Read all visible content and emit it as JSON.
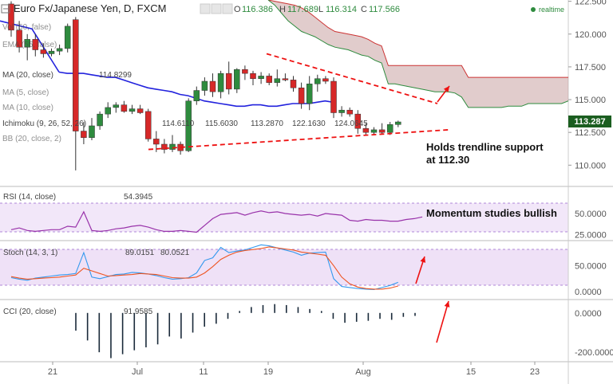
{
  "header": {
    "title": "Euro Fx/Japanese Yen, D, FXCM",
    "o_label": "O",
    "o_value": "116.386",
    "h_label": "H",
    "h_value": "117.689",
    "l_label": "L",
    "l_value": "116.314",
    "c_label": "C",
    "c_value": "117.566",
    "realtime": "realtime"
  },
  "indicators": {
    "vol": "Vol (50, false)",
    "ema": "EMA (55, false)",
    "ma20": "MA (20, close)",
    "ma20_value": "114.8299",
    "ma5": "MA (5, close)",
    "ma10": "MA (10, close)",
    "ichimoku": "Ichimoku (9, 26, 52, 26)",
    "ichimoku_values": [
      "114.6110",
      "115.6030",
      "113.2870",
      "122.1630",
      "124.0645"
    ],
    "bb": "BB (20, close, 2)"
  },
  "colors": {
    "bull": "#2e8b3e",
    "bear": "#d62828",
    "ma": "#2222dd",
    "cloud": "#c9a3a3",
    "rsi": "#9933aa",
    "stoch_k": "#3399ee",
    "stoch_d": "#ee5522",
    "band": "#e8d4f4",
    "trend": "#ee1111",
    "price_tag": "#1b5e20"
  },
  "annotations": {
    "trendline_note_line1": "Holds trendline support",
    "trendline_note_line2": "at 112.30",
    "momentum_note": "Momentum studies bullish"
  },
  "price_tag": "113.287",
  "chart_data": [
    {
      "type": "candlestick",
      "panel": "price",
      "y_ticks": [
        "122.500",
        "120.000",
        "117.500",
        "115.000",
        "112.500",
        "110.000"
      ],
      "ylim": [
        108.5,
        122.6
      ],
      "x_ticks": [
        "21",
        "Jul",
        "11",
        "19",
        "Aug",
        "15",
        "23"
      ],
      "candles": [
        {
          "o": 122.3,
          "h": 122.5,
          "l": 119.8,
          "c": 120.3
        },
        {
          "o": 120.3,
          "h": 121.0,
          "l": 118.6,
          "c": 119.0
        },
        {
          "o": 119.0,
          "h": 120.0,
          "l": 118.0,
          "c": 119.6
        },
        {
          "o": 119.6,
          "h": 120.0,
          "l": 118.3,
          "c": 118.8
        },
        {
          "o": 118.8,
          "h": 119.3,
          "l": 118.2,
          "c": 118.5
        },
        {
          "o": 118.5,
          "h": 118.9,
          "l": 118.3,
          "c": 118.7
        },
        {
          "o": 118.7,
          "h": 119.2,
          "l": 118.4,
          "c": 118.9
        },
        {
          "o": 118.9,
          "h": 120.8,
          "l": 118.6,
          "c": 120.6
        },
        {
          "o": 121.1,
          "h": 121.3,
          "l": 109.6,
          "c": 112.6
        },
        {
          "o": 112.6,
          "h": 113.3,
          "l": 111.6,
          "c": 112.1
        },
        {
          "o": 112.1,
          "h": 113.6,
          "l": 111.9,
          "c": 113.0
        },
        {
          "o": 113.0,
          "h": 114.1,
          "l": 112.7,
          "c": 113.9
        },
        {
          "o": 113.9,
          "h": 114.8,
          "l": 113.6,
          "c": 114.4
        },
        {
          "o": 114.4,
          "h": 114.8,
          "l": 114.0,
          "c": 114.6
        },
        {
          "o": 114.6,
          "h": 114.9,
          "l": 114.0,
          "c": 114.1
        },
        {
          "o": 114.1,
          "h": 114.6,
          "l": 113.9,
          "c": 114.3
        },
        {
          "o": 114.3,
          "h": 114.6,
          "l": 113.9,
          "c": 114.0
        },
        {
          "o": 114.1,
          "h": 114.3,
          "l": 111.8,
          "c": 112.0
        },
        {
          "o": 112.0,
          "h": 112.6,
          "l": 111.0,
          "c": 111.6
        },
        {
          "o": 111.6,
          "h": 112.0,
          "l": 110.9,
          "c": 111.2
        },
        {
          "o": 111.2,
          "h": 112.3,
          "l": 111.0,
          "c": 111.6
        },
        {
          "o": 111.6,
          "h": 111.8,
          "l": 110.8,
          "c": 111.1
        },
        {
          "o": 111.1,
          "h": 115.1,
          "l": 111.0,
          "c": 114.9
        },
        {
          "o": 114.9,
          "h": 116.0,
          "l": 114.6,
          "c": 115.7
        },
        {
          "o": 115.7,
          "h": 116.7,
          "l": 115.3,
          "c": 116.4
        },
        {
          "o": 116.4,
          "h": 117.0,
          "l": 115.2,
          "c": 115.6
        },
        {
          "o": 115.6,
          "h": 117.2,
          "l": 115.1,
          "c": 117.0
        },
        {
          "o": 117.0,
          "h": 117.9,
          "l": 115.4,
          "c": 115.8
        },
        {
          "o": 115.8,
          "h": 117.4,
          "l": 115.5,
          "c": 117.3
        },
        {
          "o": 117.3,
          "h": 117.6,
          "l": 116.5,
          "c": 117.0
        },
        {
          "o": 117.0,
          "h": 117.2,
          "l": 116.1,
          "c": 116.6
        },
        {
          "o": 116.6,
          "h": 117.1,
          "l": 116.2,
          "c": 116.8
        },
        {
          "o": 116.8,
          "h": 117.0,
          "l": 116.1,
          "c": 116.3
        },
        {
          "o": 116.3,
          "h": 117.3,
          "l": 116.0,
          "c": 116.6
        },
        {
          "o": 116.6,
          "h": 117.0,
          "l": 116.4,
          "c": 116.5
        },
        {
          "o": 116.5,
          "h": 116.8,
          "l": 115.6,
          "c": 115.9
        },
        {
          "o": 115.9,
          "h": 116.3,
          "l": 114.3,
          "c": 114.7
        },
        {
          "o": 114.7,
          "h": 116.8,
          "l": 114.2,
          "c": 116.2
        },
        {
          "o": 116.2,
          "h": 116.9,
          "l": 115.6,
          "c": 116.6
        },
        {
          "o": 116.6,
          "h": 116.8,
          "l": 116.2,
          "c": 116.4
        },
        {
          "o": 116.4,
          "h": 116.7,
          "l": 113.6,
          "c": 114.0
        },
        {
          "o": 114.0,
          "h": 114.5,
          "l": 113.7,
          "c": 114.2
        },
        {
          "o": 114.2,
          "h": 114.4,
          "l": 113.7,
          "c": 113.9
        },
        {
          "o": 113.9,
          "h": 114.2,
          "l": 112.4,
          "c": 112.8
        },
        {
          "o": 112.8,
          "h": 113.2,
          "l": 112.3,
          "c": 112.5
        },
        {
          "o": 112.5,
          "h": 112.9,
          "l": 112.3,
          "c": 112.7
        },
        {
          "o": 112.7,
          "h": 113.2,
          "l": 112.4,
          "c": 112.5
        },
        {
          "o": 112.5,
          "h": 113.3,
          "l": 112.3,
          "c": 113.1
        },
        {
          "o": 113.1,
          "h": 113.4,
          "l": 112.9,
          "c": 113.3
        }
      ],
      "ma20": [
        117.1,
        117.0,
        117.0,
        117.0,
        116.9,
        116.8,
        116.7,
        116.7,
        116.5,
        116.3,
        116.1,
        115.9,
        115.8,
        115.7,
        115.6,
        115.4,
        115.3,
        115.1,
        114.9,
        114.8,
        114.7,
        114.6,
        114.5,
        114.5,
        114.6,
        114.6,
        114.5,
        114.5,
        114.6,
        114.7,
        114.7,
        114.7,
        114.8,
        114.9,
        114.8
      ],
      "cloud_upper": [
        122.6,
        122.5,
        122.4,
        122.3,
        122.2,
        122.0,
        121.7,
        121.3,
        120.9,
        120.5,
        120.2,
        120.1,
        120.0,
        119.9,
        119.8,
        119.6,
        119.3,
        119.1,
        117.6,
        117.6,
        117.6,
        117.6,
        117.6,
        117.6,
        117.6,
        117.6,
        117.6,
        117.6,
        117.6,
        117.6,
        116.7,
        116.7,
        116.7,
        116.7,
        116.7,
        116.7,
        116.7,
        116.7,
        116.7,
        116.7,
        116.7,
        116.7,
        116.7,
        116.7,
        116.7,
        116.7
      ],
      "cloud_lower": [
        122.6,
        122.2,
        121.6,
        121.0,
        120.6,
        120.2,
        120.0,
        119.8,
        119.5,
        119.2,
        119.0,
        118.9,
        118.8,
        118.6,
        118.4,
        118.3,
        118.0,
        117.8,
        116.2,
        116.2,
        116.1,
        116.0,
        115.9,
        115.8,
        115.7,
        115.6,
        115.6,
        115.6,
        115.5,
        115.2,
        114.4,
        114.4,
        114.4,
        114.4,
        114.4,
        114.4,
        114.5,
        114.5,
        114.5,
        114.7,
        114.7,
        114.7,
        114.7,
        114.7,
        114.7,
        114.9
      ]
    },
    {
      "type": "line",
      "panel": "rsi",
      "label": "RSI (14, close)",
      "value_label": "54.3945",
      "y_ticks": [
        "50.0000",
        "25.0000"
      ],
      "ylim": [
        20,
        80
      ],
      "values": [
        31,
        33,
        30,
        29,
        30,
        31,
        31,
        35,
        34,
        52,
        30,
        29,
        30,
        32,
        33,
        35,
        36,
        34,
        31,
        29,
        29,
        30,
        29,
        28,
        36,
        44,
        49,
        50,
        51,
        48,
        51,
        53,
        51,
        52,
        50,
        49,
        48,
        49,
        47,
        50,
        49,
        48,
        42,
        41,
        43,
        42,
        42,
        41,
        41,
        43,
        44,
        46
      ]
    },
    {
      "type": "line",
      "panel": "stoch",
      "label": "Stoch (14, 3, 1)",
      "k_label": "89.0151",
      "d_label": "80.0521",
      "y_ticks": [
        "50.0000",
        "0.0000"
      ],
      "ylim": [
        -12,
        95
      ],
      "series": [
        {
          "values": [
            27,
            24,
            22,
            26,
            28,
            30,
            32,
            33,
            35,
            75,
            28,
            25,
            29,
            33,
            34,
            37,
            36,
            34,
            31,
            27,
            24,
            25,
            27,
            36,
            60,
            65,
            85,
            75,
            78,
            80,
            85,
            90,
            88,
            84,
            80,
            76,
            70,
            74,
            75,
            76,
            25,
            10,
            8,
            6,
            5,
            4,
            8,
            12,
            18
          ]
        },
        {
          "values": [
            29,
            26,
            24,
            25,
            26,
            27,
            28,
            30,
            32,
            45,
            40,
            35,
            30,
            31,
            32,
            33,
            35,
            34,
            33,
            30,
            27,
            26,
            26,
            28,
            36,
            48,
            62,
            70,
            76,
            79,
            81,
            83,
            86,
            84,
            82,
            80,
            76,
            74,
            72,
            70,
            50,
            28,
            15,
            9,
            6,
            5,
            5,
            7,
            11
          ]
        }
      ]
    },
    {
      "type": "bar",
      "panel": "cci",
      "label": "CCI (20, close)",
      "value_label": "91.9585",
      "y_ticks": [
        "0.0000",
        "-200.0000"
      ],
      "ylim": [
        -240,
        60
      ],
      "values": [
        -90,
        -140,
        -200,
        -230,
        -210,
        -190,
        -175,
        -160,
        -120,
        -130,
        -100,
        -70,
        -55,
        -30,
        10,
        30,
        40,
        45,
        40,
        30,
        20,
        10,
        -30,
        -50,
        -45,
        -40,
        -30,
        -35,
        -20,
        -15
      ]
    }
  ]
}
